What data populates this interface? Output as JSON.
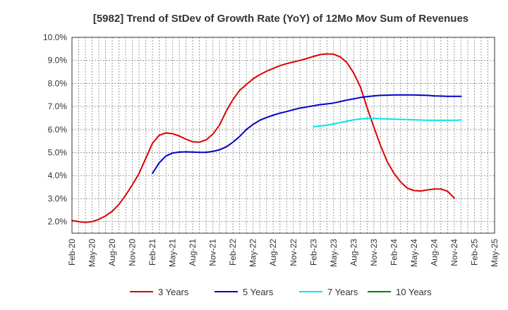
{
  "chart_data": {
    "type": "line",
    "title": "[5982]  Trend of StDev of Growth Rate (YoY) of 12Mo Mov Sum of Revenues",
    "xlabel": "",
    "ylabel": "",
    "ylim": [
      1.5,
      10.0
    ],
    "yticks": [
      2.0,
      3.0,
      4.0,
      5.0,
      6.0,
      7.0,
      8.0,
      9.0,
      10.0
    ],
    "ytick_labels": [
      "2.0%",
      "3.0%",
      "4.0%",
      "5.0%",
      "6.0%",
      "7.0%",
      "8.0%",
      "9.0%",
      "10.0%"
    ],
    "x_start": "Feb-20",
    "x_end": "May-25",
    "months_span": 63,
    "x_tick_labels": [
      "Feb-20",
      "May-20",
      "Aug-20",
      "Nov-20",
      "Feb-21",
      "May-21",
      "Aug-21",
      "Nov-21",
      "Feb-22",
      "May-22",
      "Aug-22",
      "Nov-22",
      "Feb-23",
      "May-23",
      "Aug-23",
      "Nov-23",
      "Feb-24",
      "May-24",
      "Aug-24",
      "Nov-24",
      "Feb-25",
      "May-25"
    ],
    "grid": true,
    "legend_position": "bottom",
    "series": [
      {
        "name": "3 Years",
        "color": "#dd0000",
        "start_index": 0,
        "values": [
          2.05,
          2.0,
          1.97,
          2.0,
          2.1,
          2.25,
          2.45,
          2.75,
          3.15,
          3.6,
          4.1,
          4.75,
          5.4,
          5.75,
          5.85,
          5.82,
          5.72,
          5.58,
          5.47,
          5.45,
          5.55,
          5.8,
          6.2,
          6.8,
          7.3,
          7.7,
          7.95,
          8.2,
          8.38,
          8.53,
          8.65,
          8.77,
          8.86,
          8.93,
          9.0,
          9.08,
          9.17,
          9.25,
          9.28,
          9.27,
          9.15,
          8.9,
          8.45,
          7.85,
          6.95,
          6.1,
          5.3,
          4.6,
          4.1,
          3.72,
          3.45,
          3.35,
          3.33,
          3.38,
          3.42,
          3.42,
          3.32,
          3.02
        ]
      },
      {
        "name": "5 Years",
        "color": "#0000cc",
        "start_index": 12,
        "values": [
          4.1,
          4.55,
          4.85,
          4.98,
          5.02,
          5.03,
          5.02,
          5.01,
          5.01,
          5.05,
          5.12,
          5.25,
          5.45,
          5.7,
          6.0,
          6.22,
          6.4,
          6.52,
          6.62,
          6.71,
          6.78,
          6.86,
          6.93,
          6.98,
          7.03,
          7.08,
          7.11,
          7.15,
          7.21,
          7.28,
          7.33,
          7.39,
          7.43,
          7.46,
          7.48,
          7.49,
          7.5,
          7.5,
          7.5,
          7.5,
          7.49,
          7.48,
          7.46,
          7.45,
          7.44,
          7.44,
          7.44
        ]
      },
      {
        "name": "7 Years",
        "color": "#00e5e5",
        "start_index": 36,
        "values": [
          6.12,
          6.15,
          6.19,
          6.24,
          6.3,
          6.36,
          6.42,
          6.46,
          6.48,
          6.48,
          6.47,
          6.46,
          6.45,
          6.44,
          6.43,
          6.42,
          6.41,
          6.4,
          6.4,
          6.4,
          6.4,
          6.4,
          6.41
        ]
      },
      {
        "name": "10 Years",
        "color": "#008000",
        "start_index": 0,
        "values": []
      }
    ]
  }
}
